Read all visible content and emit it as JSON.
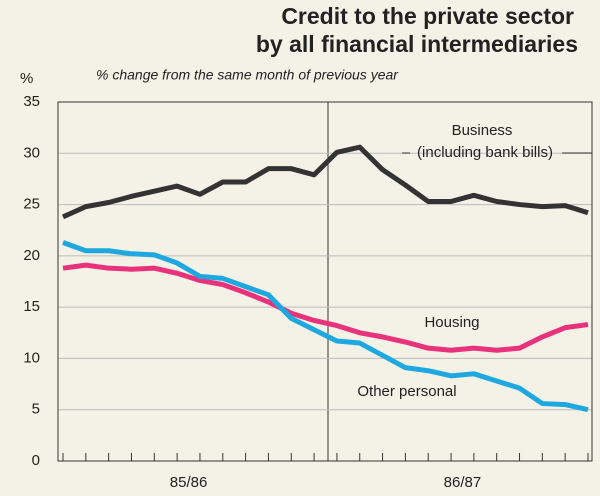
{
  "chart_data": {
    "type": "line",
    "title_lines": [
      "Credit to the private sector",
      "by all financial intermediaries"
    ],
    "subtitle": "% change from the same month of previous year",
    "y_label": "%",
    "categories": [
      null,
      null,
      null,
      null,
      null,
      null,
      null,
      null,
      null,
      null,
      null,
      null,
      null,
      null,
      null,
      null,
      null,
      null,
      null,
      null,
      null,
      null,
      null,
      null
    ],
    "groups": [
      "85/86",
      "86/87"
    ],
    "series": [
      {
        "name": "Business",
        "note": "(including bank bills)",
        "color": "#333333",
        "values": [
          23.8,
          24.8,
          25.2,
          25.8,
          26.3,
          26.8,
          26.0,
          27.2,
          27.2,
          28.5,
          28.5,
          27.9,
          30.1,
          30.6,
          28.4,
          26.9,
          25.3,
          25.3,
          25.9,
          25.3,
          25.0,
          24.8,
          24.9,
          24.2
        ]
      },
      {
        "name": "Housing",
        "color": "#e8327c",
        "values": [
          18.8,
          19.1,
          18.8,
          18.7,
          18.8,
          18.3,
          17.6,
          17.2,
          16.4,
          15.5,
          14.4,
          13.7,
          13.2,
          12.5,
          12.1,
          11.6,
          11.0,
          10.8,
          11.0,
          10.8,
          11.0,
          12.1,
          13.0,
          13.3
        ]
      },
      {
        "name": "Other personal",
        "color": "#1fa8e0",
        "values": [
          21.3,
          20.5,
          20.5,
          20.2,
          20.1,
          19.3,
          18.0,
          17.8,
          17.0,
          16.2,
          13.9,
          12.8,
          11.7,
          11.5,
          10.3,
          9.1,
          8.8,
          8.3,
          8.5,
          7.8,
          7.1,
          5.6,
          5.5,
          5.0
        ]
      }
    ],
    "ylim": [
      0,
      35
    ],
    "yticks": [
      0,
      5,
      10,
      15,
      20,
      25,
      30,
      35
    ],
    "grid": true
  }
}
